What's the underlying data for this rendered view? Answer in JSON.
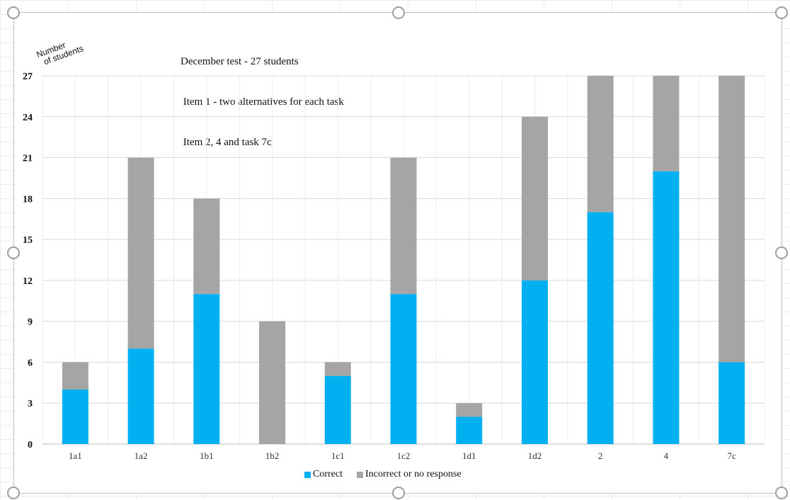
{
  "chart_data": {
    "type": "bar",
    "stacked": true,
    "title_lines": [
      "December test - 27 students",
      " Item 1 - two alternatives for each task",
      " Item 2, 4 and task 7c"
    ],
    "ylabel_lines": [
      "Number",
      "of students"
    ],
    "xlabel": "",
    "categories": [
      "1a1",
      "1a2",
      "1b1",
      "1b2",
      "1c1",
      "1c2",
      "1d1",
      "1d2",
      "2",
      "4",
      "7c"
    ],
    "series": [
      {
        "name": "Correct",
        "color": "#00b0f0",
        "values": [
          4,
          7,
          11,
          0,
          5,
          11,
          2,
          12,
          17,
          20,
          6
        ]
      },
      {
        "name": "Incorrect or no response",
        "color": "#a5a5a5",
        "values": [
          2,
          14,
          7,
          9,
          1,
          10,
          1,
          12,
          10,
          7,
          21
        ]
      }
    ],
    "ylim": [
      0,
      27
    ],
    "yticks": [
      0,
      3,
      6,
      9,
      12,
      15,
      18,
      21,
      24,
      27
    ],
    "grid": true,
    "legend_position": "bottom"
  }
}
